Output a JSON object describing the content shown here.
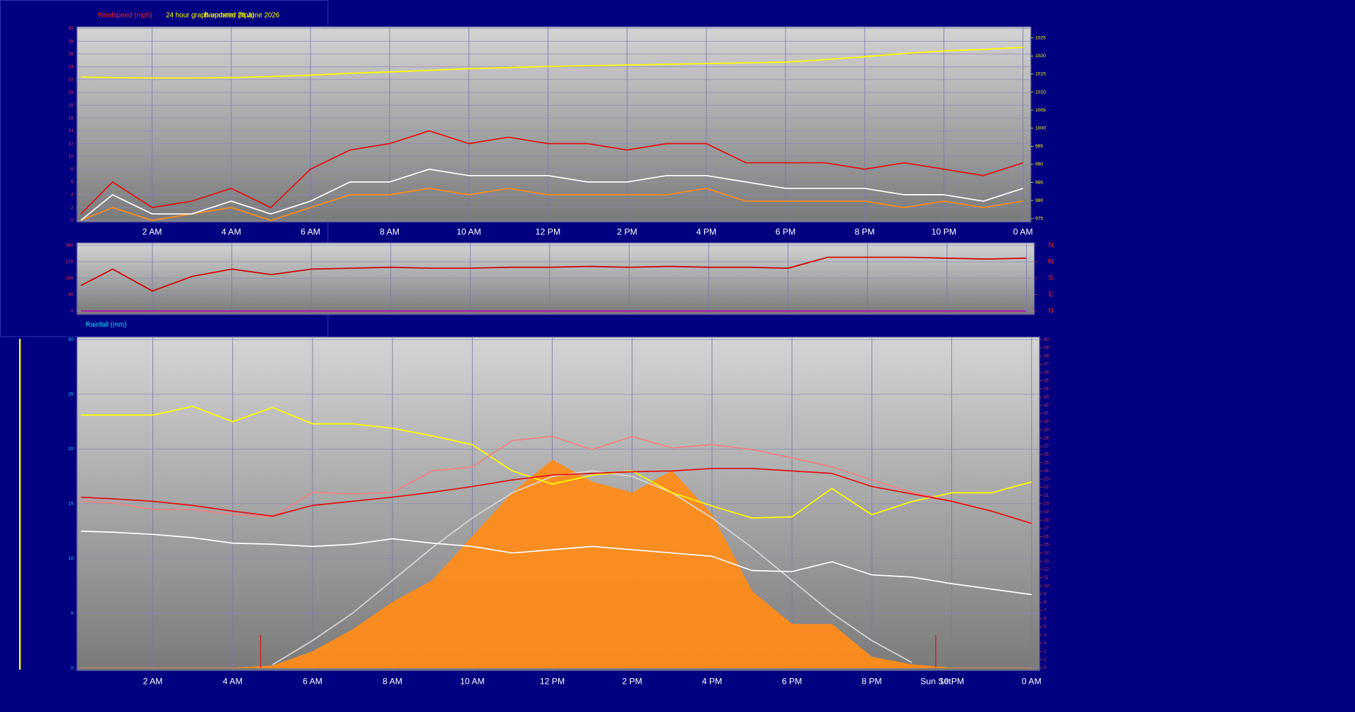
{
  "chart_data": [
    {
      "type": "line",
      "y_label": "Windspeed (mph)",
      "title": "24 hour graph updated 28 June 2026",
      "y2_label": "Barometer (hpa)",
      "x": [
        0.2,
        1,
        2,
        3,
        4,
        5,
        6,
        7,
        8,
        9,
        10,
        11,
        12,
        13,
        14,
        15,
        16,
        17,
        18,
        19,
        20,
        21,
        22,
        23,
        24
      ],
      "xlim": [
        0.1,
        24.2
      ],
      "xticks": [
        {
          "value": 2,
          "label": "2 AM"
        },
        {
          "value": 4,
          "label": "4 AM"
        },
        {
          "value": 6,
          "label": "6 AM"
        },
        {
          "value": 8,
          "label": "8 AM"
        },
        {
          "value": 10,
          "label": "10 AM"
        },
        {
          "value": 12,
          "label": "12 PM"
        },
        {
          "value": 14,
          "label": "2 PM"
        },
        {
          "value": 16,
          "label": "4 PM"
        },
        {
          "value": 18,
          "label": "6 PM"
        },
        {
          "value": 20,
          "label": "8 PM"
        },
        {
          "value": 22,
          "label": "10 PM"
        },
        {
          "value": 24,
          "label": "0 AM"
        }
      ],
      "ylim": [
        0,
        30
      ],
      "yticks": [
        0,
        2,
        4,
        6,
        8,
        10,
        12,
        14,
        16,
        18,
        20,
        22,
        24,
        26,
        28,
        30
      ],
      "y2lim": [
        974.5,
        1027.6
      ],
      "y2ticks": [
        975,
        980,
        985,
        990,
        995,
        1000,
        1005,
        1010,
        1015,
        1020,
        1025
      ],
      "grid": true,
      "series": [
        {
          "color": "#e01010",
          "values": [
            1,
            6,
            2,
            3,
            5,
            2,
            8,
            11,
            12,
            14,
            12,
            13,
            12,
            12,
            11,
            12,
            12,
            9,
            9,
            9,
            8,
            9,
            8,
            7,
            9
          ]
        },
        {
          "color": "#ff8c1a",
          "values": [
            0,
            2,
            0,
            1,
            2,
            0,
            2,
            4,
            4,
            5,
            4,
            5,
            4,
            4,
            4,
            4,
            5,
            3,
            3,
            3,
            3,
            2,
            3,
            2,
            3
          ]
        },
        {
          "color": "#ffffff",
          "values": [
            0,
            4,
            1,
            1,
            3,
            1,
            3,
            6,
            6,
            8,
            7,
            7,
            7,
            6,
            6,
            7,
            7,
            6,
            5,
            5,
            5,
            4,
            4,
            3,
            5
          ]
        },
        {
          "color": "#ffff00",
          "axis": "y2",
          "values": [
            1014.2,
            1014,
            1013.9,
            1013.9,
            1014,
            1014.3,
            1014.7,
            1015.2,
            1015.6,
            1016,
            1016.5,
            1016.8,
            1017.1,
            1017.3,
            1017.5,
            1017.7,
            1017.9,
            1018.1,
            1018.3,
            1019,
            1019.8,
            1020.7,
            1021.4,
            1021.8,
            1022.4
          ]
        }
      ]
    },
    {
      "type": "line",
      "rainfall_label": "Rainfall (mm)",
      "x": [
        0.2,
        1,
        2,
        3,
        4,
        5,
        6,
        7,
        8,
        9,
        10,
        11,
        12,
        13,
        14,
        15,
        16,
        17,
        18,
        19,
        20,
        21,
        22,
        23,
        24
      ],
      "xlim": [
        0.1,
        24.2
      ],
      "xticks": [
        {
          "value": 2,
          "label": "2 AM"
        },
        {
          "value": 4,
          "label": "4 AM"
        },
        {
          "value": 6,
          "label": "6 AM"
        },
        {
          "value": 8,
          "label": "8 AM"
        },
        {
          "value": 10,
          "label": "10 AM"
        },
        {
          "value": 12,
          "label": "12 PM"
        },
        {
          "value": 14,
          "label": "2 PM"
        },
        {
          "value": 16,
          "label": "4 PM"
        },
        {
          "value": 18,
          "label": "6 PM"
        },
        {
          "value": 20,
          "label": "8 PM"
        },
        {
          "value": 22,
          "label": "10 PM"
        },
        {
          "value": 24,
          "label": "0 AM"
        }
      ],
      "ylim": [
        0,
        360
      ],
      "yticks": [
        0,
        90,
        180,
        270,
        360
      ],
      "y2lim": [
        0,
        360
      ],
      "y2ticks": [
        {
          "value": 0,
          "label": "N"
        },
        {
          "value": 90,
          "label": "E"
        },
        {
          "value": 180,
          "label": "S"
        },
        {
          "value": 270,
          "label": "W"
        },
        {
          "value": 360,
          "label": "N"
        }
      ],
      "grid": true,
      "series": [
        {
          "color": "#d00000",
          "values": [
            140,
            230,
            110,
            190,
            230,
            200,
            230,
            235,
            240,
            235,
            235,
            240,
            240,
            245,
            240,
            245,
            240,
            240,
            235,
            295,
            295,
            295,
            290,
            285,
            290
          ]
        },
        {
          "color": "#c000c0",
          "values": [
            0,
            0,
            0,
            0,
            0,
            0,
            0,
            0,
            0,
            0,
            0,
            0,
            0,
            0,
            0,
            0,
            0,
            0,
            0,
            0,
            0,
            0,
            0,
            0,
            0
          ]
        }
      ]
    },
    {
      "type": "line",
      "x": [
        0.2,
        1,
        2,
        3,
        4,
        5,
        6,
        7,
        8,
        9,
        10,
        11,
        12,
        13,
        14,
        15,
        16,
        17,
        18,
        19,
        20,
        21,
        22,
        23,
        24
      ],
      "xlim": [
        0.1,
        24.2
      ],
      "xticks": [
        {
          "value": 2,
          "label": "2 AM"
        },
        {
          "value": 4,
          "label": "4 AM"
        },
        {
          "value": 6,
          "label": "6 AM"
        },
        {
          "value": 8,
          "label": "8 AM"
        },
        {
          "value": 10,
          "label": "10 AM"
        },
        {
          "value": 12,
          "label": "12 PM"
        },
        {
          "value": 14,
          "label": "2 PM"
        },
        {
          "value": 16,
          "label": "4 PM"
        },
        {
          "value": 18,
          "label": "6 PM"
        },
        {
          "value": 20,
          "label": "8 PM"
        },
        {
          "value": 22,
          "label": "10 PM"
        },
        {
          "value": 24,
          "label": "0 AM"
        }
      ],
      "ylim": [
        0,
        30
      ],
      "yticks": [
        0,
        5,
        10,
        15,
        20,
        25,
        30
      ],
      "y2lim": [
        0,
        40
      ],
      "y2ticks": [
        0,
        1,
        2,
        3,
        4,
        5,
        6,
        7,
        8,
        9,
        10,
        11,
        12,
        13,
        14,
        15,
        16,
        17,
        18,
        19,
        20,
        21,
        22,
        23,
        24,
        25,
        26,
        27,
        28,
        29,
        30,
        31,
        32,
        33,
        34,
        35,
        36,
        37,
        38,
        39,
        40
      ],
      "grid": true,
      "events": [
        {
          "x": 4.7
        },
        {
          "x": 21.6,
          "label": "Sun Set"
        }
      ],
      "series": [
        {
          "color": "#ff8c1a",
          "style": "area",
          "values": [
            0,
            0,
            0,
            0,
            0,
            0.2,
            1.5,
            3.5,
            6,
            8,
            12,
            16,
            19,
            17,
            16,
            18,
            14,
            7,
            4,
            4,
            1,
            0.3,
            0,
            0,
            0
          ]
        },
        {
          "color": "#d8d8d8",
          "values": [
            null,
            null,
            null,
            null,
            null,
            0.3,
            2.5,
            5,
            8,
            11,
            13.7,
            16,
            17.5,
            18,
            17.5,
            16,
            13.7,
            11,
            8,
            5,
            2.5,
            0.5,
            null,
            null,
            null
          ]
        },
        {
          "color": "#ffff00",
          "values": [
            23.1,
            23.1,
            23.1,
            23.9,
            22.5,
            23.8,
            22.3,
            22.3,
            21.9,
            21.2,
            20.4,
            18.0,
            16.8,
            17.6,
            18.0,
            16.0,
            14.8,
            13.7,
            13.8,
            16.4,
            14.0,
            15.2,
            16.0,
            16.0,
            17.0
          ]
        },
        {
          "color": "#ffffff",
          "values": [
            12.5,
            12.4,
            12.2,
            11.9,
            11.4,
            11.3,
            11.1,
            11.3,
            11.8,
            11.4,
            11.1,
            10.5,
            10.8,
            11.1,
            10.8,
            10.5,
            10.2,
            8.9,
            8.8,
            9.7,
            8.5,
            8.3,
            7.7,
            7.2,
            6.7
          ]
        },
        {
          "color": "#f08080",
          "axis": "y2",
          "values": [
            20.3,
            20.1,
            19.3,
            19.3,
            18.7,
            18.4,
            21.4,
            21.2,
            21.4,
            24.0,
            24.5,
            27.7,
            28.2,
            26.6,
            28.2,
            26.8,
            27.2,
            26.6,
            25.6,
            24.5,
            22.9,
            21.4,
            20.3,
            19.1,
            17.6
          ]
        },
        {
          "color": "#e01010",
          "axis": "y2",
          "values": [
            20.8,
            20.6,
            20.3,
            19.8,
            19.1,
            18.5,
            19.8,
            20.3,
            20.8,
            21.4,
            22.1,
            22.9,
            23.5,
            23.7,
            23.9,
            24.0,
            24.3,
            24.3,
            24.0,
            23.7,
            22.1,
            21.2,
            20.3,
            19.1,
            17.6
          ]
        }
      ]
    }
  ]
}
